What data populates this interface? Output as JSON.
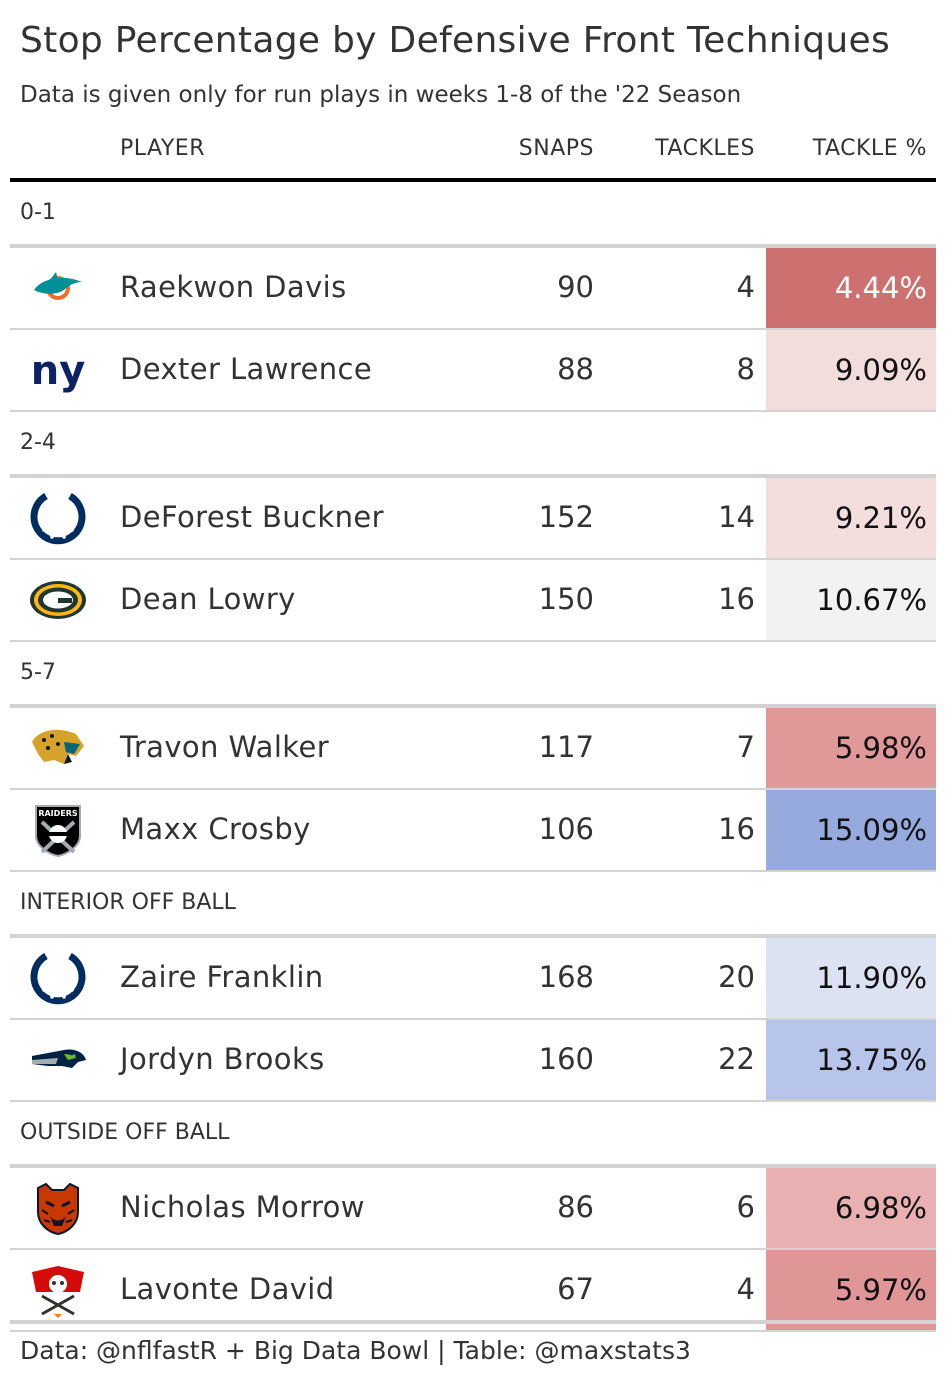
{
  "title": "Stop Percentage by Defensive Front Techniques",
  "subtitle": "Data is given only for run plays in weeks 1-8 of the '22 Season",
  "columns": {
    "player": "PLAYER",
    "snaps": "SNAPS",
    "tackles": "TACKLES",
    "tackle_pct": "TACKLE %"
  },
  "footer": "Data: @nflfastR + Big Data Bowl | Table: @maxstats3",
  "chart_data": {
    "type": "table",
    "groups": [
      {
        "name": "0-1",
        "rows": [
          {
            "team_logo": "dolphins-logo-icon",
            "player": "Raekwon Davis",
            "snaps": "90",
            "tackles": "4",
            "tackle_pct": "4.44%",
            "cell_color": "#cd7070",
            "text_color": "#ffffff"
          },
          {
            "team_logo": "giants-logo-icon",
            "player": "Dexter Lawrence",
            "snaps": "88",
            "tackles": "8",
            "tackle_pct": "9.09%",
            "cell_color": "#f3dcdc",
            "text_color": "#111111"
          }
        ]
      },
      {
        "name": "2-4",
        "rows": [
          {
            "team_logo": "colts-logo-icon",
            "player": "DeForest Buckner",
            "snaps": "152",
            "tackles": "14",
            "tackle_pct": "9.21%",
            "cell_color": "#f3dddd",
            "text_color": "#111111"
          },
          {
            "team_logo": "packers-logo-icon",
            "player": "Dean Lowry",
            "snaps": "150",
            "tackles": "16",
            "tackle_pct": "10.67%",
            "cell_color": "#f2f2f3",
            "text_color": "#111111"
          }
        ]
      },
      {
        "name": "5-7",
        "rows": [
          {
            "team_logo": "jaguars-logo-icon",
            "player": "Travon Walker",
            "snaps": "117",
            "tackles": "7",
            "tackle_pct": "5.98%",
            "cell_color": "#e09898",
            "text_color": "#111111"
          },
          {
            "team_logo": "raiders-logo-icon",
            "player": "Maxx Crosby",
            "snaps": "106",
            "tackles": "16",
            "tackle_pct": "15.09%",
            "cell_color": "#97aade",
            "text_color": "#111111"
          }
        ]
      },
      {
        "name": "INTERIOR OFF BALL",
        "rows": [
          {
            "team_logo": "colts-logo-icon",
            "player": "Zaire Franklin",
            "snaps": "168",
            "tackles": "20",
            "tackle_pct": "11.90%",
            "cell_color": "#dde2f2",
            "text_color": "#111111"
          },
          {
            "team_logo": "seahawks-logo-icon",
            "player": "Jordyn Brooks",
            "snaps": "160",
            "tackles": "22",
            "tackle_pct": "13.75%",
            "cell_color": "#b8c5ea",
            "text_color": "#111111"
          }
        ]
      },
      {
        "name": "OUTSIDE OFF BALL",
        "rows": [
          {
            "team_logo": "bears-logo-icon",
            "player": "Nicholas Morrow",
            "snaps": "86",
            "tackles": "6",
            "tackle_pct": "6.98%",
            "cell_color": "#e8b0b0",
            "text_color": "#111111"
          },
          {
            "team_logo": "buccaneers-logo-icon",
            "player": "Lavonte David",
            "snaps": "67",
            "tackles": "4",
            "tackle_pct": "5.97%",
            "cell_color": "#e09696",
            "text_color": "#111111"
          }
        ]
      }
    ]
  }
}
